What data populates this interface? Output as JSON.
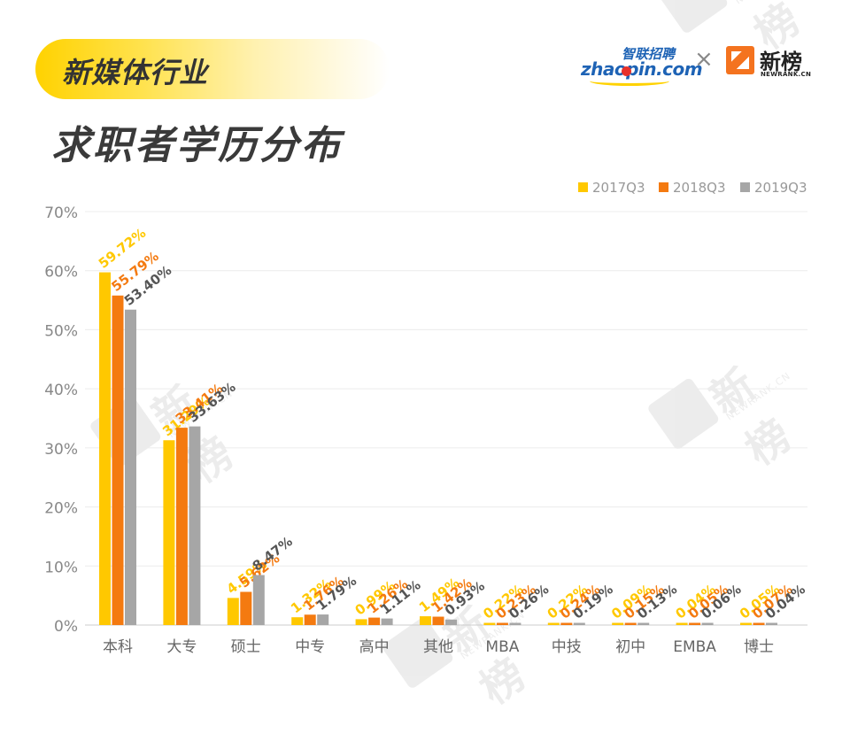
{
  "header": {
    "tag": "新媒体行业",
    "title": "求职者学历分布"
  },
  "logos": {
    "zhaopin_cn": "智联招聘",
    "zhaopin_en": "zhaopin.com",
    "separator": "×",
    "newrank_cn": "新榜",
    "newrank_en": "NEWRANK.CN"
  },
  "watermark": {
    "cn": "新榜",
    "en": "NEWRANK.CN"
  },
  "chart_data": {
    "type": "bar",
    "categories": [
      "本科",
      "大专",
      "硕士",
      "中专",
      "高中",
      "其他",
      "MBA",
      "中技",
      "初中",
      "EMBA",
      "博士"
    ],
    "series": [
      {
        "name": "2017Q3",
        "color": "#ffc800",
        "values": [
          59.72,
          31.29,
          4.59,
          1.32,
          0.99,
          1.49,
          0.22,
          0.22,
          0.09,
          0.04,
          0.05
        ],
        "labels": [
          "59.72%",
          "31.29%",
          "4.59%",
          "1.32%",
          "0.99%",
          "1.49%",
          "0.22%",
          "0.22%",
          "0.09%",
          "0.04%",
          "0.05%"
        ]
      },
      {
        "name": "2018Q3",
        "color": "#f47a10",
        "values": [
          55.79,
          33.41,
          5.62,
          1.76,
          1.26,
          1.42,
          0.23,
          0.24,
          0.15,
          0.05,
          0.07
        ],
        "labels": [
          "55.79%",
          "33.41%",
          "5.62%",
          "1.76%",
          "1.26%",
          "1.42%",
          "0.23%",
          "0.24%",
          "0.15%",
          "0.05%",
          "0.07%"
        ]
      },
      {
        "name": "2019Q3",
        "color": "#a6a6a6",
        "values": [
          53.4,
          33.63,
          8.47,
          1.79,
          1.11,
          0.93,
          0.26,
          0.19,
          0.13,
          0.06,
          0.04
        ],
        "labels": [
          "53.40%",
          "33.63%",
          "8.47%",
          "1.79%",
          "1.11%",
          "0.93%",
          "0.26%",
          "0.19%",
          "0.13%",
          "0.06%",
          "0.04%"
        ]
      }
    ],
    "ylim": [
      0,
      70
    ],
    "yticks": [
      0,
      10,
      20,
      30,
      40,
      50,
      60,
      70
    ],
    "ytick_labels": [
      "0%",
      "10%",
      "20%",
      "30%",
      "40%",
      "50%",
      "60%",
      "70%"
    ],
    "grid": true,
    "legend_position": "top-right",
    "label_colors": [
      "#ffc800",
      "#f47a10",
      "#555555"
    ]
  }
}
